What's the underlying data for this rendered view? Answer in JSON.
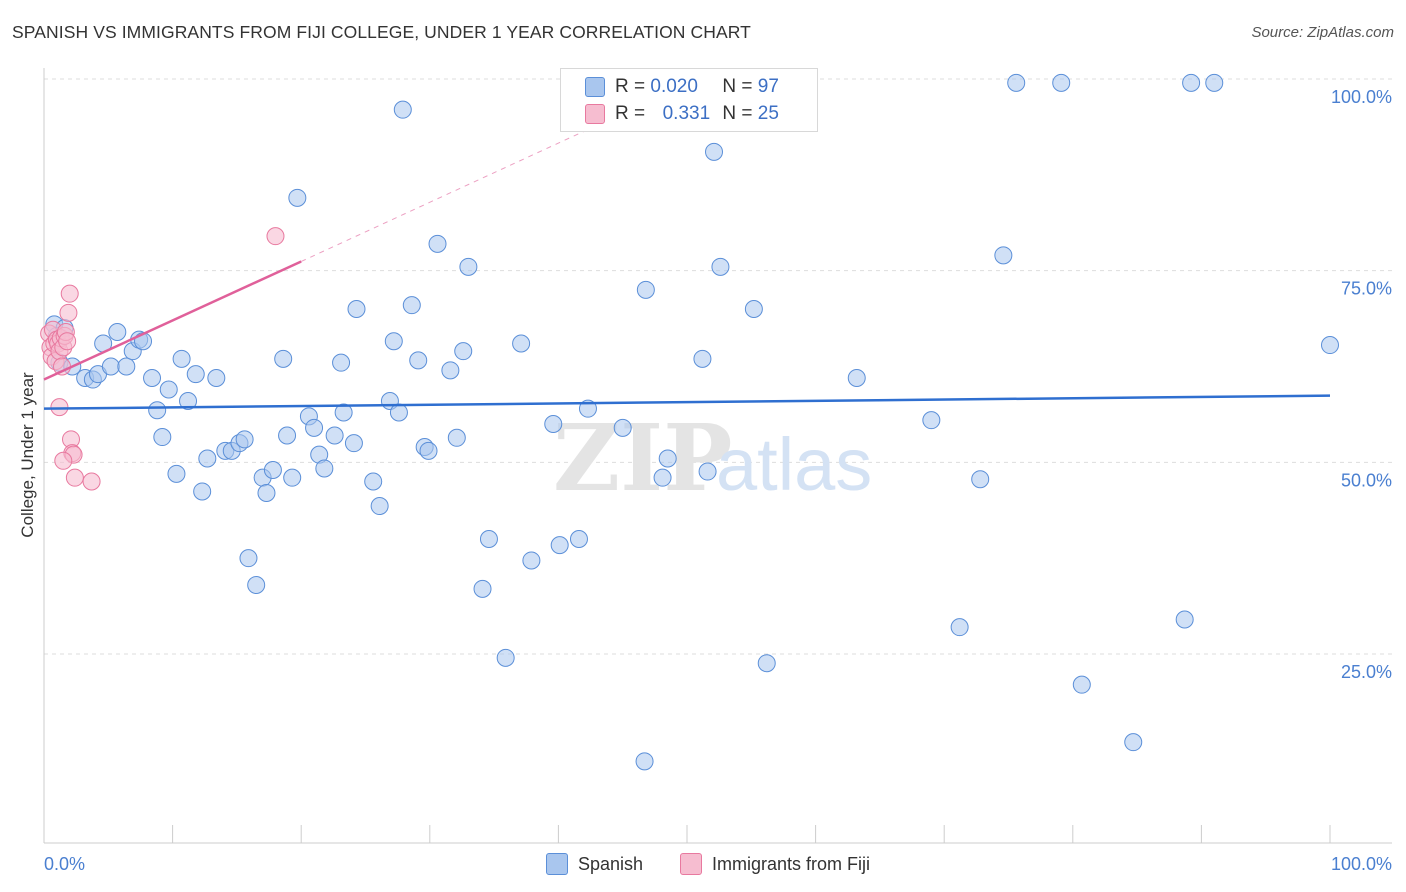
{
  "header": {
    "title": "SPANISH VS IMMIGRANTS FROM FIJI COLLEGE, UNDER 1 YEAR CORRELATION CHART",
    "source": "Source: ZipAtlas.com"
  },
  "legend": {
    "rows": [
      {
        "r_label": "R =",
        "r_value": "0.020",
        "n_label": "N =",
        "n_value": "97"
      },
      {
        "r_label": "R =",
        "r_value": "0.331",
        "n_label": "N =",
        "n_value": "25"
      }
    ]
  },
  "bottom_legend": {
    "spanish": "Spanish",
    "fiji": "Immigrants from Fiji"
  },
  "watermark": {
    "zip": "ZIP",
    "atlas": "atlas"
  },
  "colors": {
    "spanish_fill": "#a9c6ee",
    "spanish_stroke": "#5b8fd8",
    "spanish_line": "#2f6fd0",
    "fiji_fill": "#f6bdd0",
    "fiji_stroke": "#e8799f",
    "fiji_line": "#e0609a",
    "grid": "#dddddd",
    "tick_text": "#4a7fd0"
  },
  "chart_data": {
    "type": "scatter",
    "title": "SPANISH VS IMMIGRANTS FROM FIJI COLLEGE, UNDER 1 YEAR CORRELATION CHART",
    "xlabel": "",
    "ylabel": "College, Under 1 year",
    "xlim": [
      0,
      100
    ],
    "ylim": [
      0,
      105
    ],
    "x_tick_labels": [
      "0.0%",
      "100.0%"
    ],
    "y_ticks": [
      25,
      50,
      75,
      100
    ],
    "y_tick_labels": [
      "25.0%",
      "50.0%",
      "75.0%",
      "100.0%"
    ],
    "series": [
      {
        "name": "Spanish",
        "r": 0.02,
        "n": 97,
        "trend": {
          "x": [
            0,
            100
          ],
          "y": [
            57.0,
            58.7
          ]
        },
        "points": [
          [
            0.8,
            68.0
          ],
          [
            1.0,
            66.5
          ],
          [
            1.2,
            63.0
          ],
          [
            1.6,
            67.5
          ],
          [
            2.2,
            62.5
          ],
          [
            3.2,
            61.0
          ],
          [
            3.8,
            60.8
          ],
          [
            4.2,
            61.5
          ],
          [
            4.6,
            65.5
          ],
          [
            5.2,
            62.5
          ],
          [
            5.7,
            67.0
          ],
          [
            6.4,
            62.5
          ],
          [
            6.9,
            64.5
          ],
          [
            7.4,
            66.0
          ],
          [
            7.7,
            65.8
          ],
          [
            8.4,
            61.0
          ],
          [
            8.8,
            56.8
          ],
          [
            9.2,
            53.3
          ],
          [
            9.7,
            59.5
          ],
          [
            10.3,
            48.5
          ],
          [
            10.7,
            63.5
          ],
          [
            11.2,
            58.0
          ],
          [
            11.8,
            61.5
          ],
          [
            12.3,
            46.2
          ],
          [
            12.7,
            50.5
          ],
          [
            13.4,
            61.0
          ],
          [
            14.1,
            51.5
          ],
          [
            14.6,
            51.5
          ],
          [
            15.2,
            52.5
          ],
          [
            15.6,
            53.0
          ],
          [
            15.9,
            37.5
          ],
          [
            16.5,
            34.0
          ],
          [
            17.0,
            48.0
          ],
          [
            17.3,
            46.0
          ],
          [
            17.8,
            49.0
          ],
          [
            18.6,
            63.5
          ],
          [
            18.9,
            53.5
          ],
          [
            19.3,
            48.0
          ],
          [
            19.7,
            84.5
          ],
          [
            20.6,
            56.0
          ],
          [
            21.0,
            54.5
          ],
          [
            21.4,
            51.0
          ],
          [
            21.8,
            49.2
          ],
          [
            22.6,
            53.5
          ],
          [
            23.1,
            63.0
          ],
          [
            23.3,
            56.5
          ],
          [
            24.1,
            52.5
          ],
          [
            24.3,
            70.0
          ],
          [
            25.6,
            47.5
          ],
          [
            26.1,
            44.3
          ],
          [
            26.9,
            58.0
          ],
          [
            27.2,
            65.8
          ],
          [
            27.6,
            56.5
          ],
          [
            27.9,
            96.0
          ],
          [
            28.6,
            70.5
          ],
          [
            29.1,
            63.3
          ],
          [
            29.6,
            52.0
          ],
          [
            29.9,
            51.5
          ],
          [
            30.6,
            78.5
          ],
          [
            31.6,
            62.0
          ],
          [
            32.1,
            53.2
          ],
          [
            32.6,
            64.5
          ],
          [
            33.0,
            75.5
          ],
          [
            34.1,
            33.5
          ],
          [
            34.6,
            40.0
          ],
          [
            35.9,
            24.5
          ],
          [
            37.1,
            65.5
          ],
          [
            37.9,
            37.2
          ],
          [
            39.6,
            55.0
          ],
          [
            40.1,
            39.2
          ],
          [
            41.6,
            40.0
          ],
          [
            42.3,
            57.0
          ],
          [
            45.0,
            54.5
          ],
          [
            46.7,
            11.0
          ],
          [
            46.8,
            72.5
          ],
          [
            48.1,
            48.0
          ],
          [
            48.5,
            50.5
          ],
          [
            51.2,
            63.5
          ],
          [
            51.6,
            48.8
          ],
          [
            52.1,
            90.5
          ],
          [
            52.6,
            75.5
          ],
          [
            55.2,
            70.0
          ],
          [
            56.2,
            23.8
          ],
          [
            63.2,
            61.0
          ],
          [
            69.0,
            55.5
          ],
          [
            71.2,
            28.5
          ],
          [
            72.8,
            47.8
          ],
          [
            74.6,
            77.0
          ],
          [
            75.6,
            99.5
          ],
          [
            79.1,
            99.5
          ],
          [
            80.7,
            21.0
          ],
          [
            84.7,
            13.5
          ],
          [
            88.7,
            29.5
          ],
          [
            89.2,
            99.5
          ],
          [
            91.0,
            99.5
          ],
          [
            100.0,
            65.3
          ]
        ]
      },
      {
        "name": "Immigrants from Fiji",
        "r": 0.331,
        "n": 25,
        "trend": {
          "x": [
            0,
            20
          ],
          "y": [
            60.8,
            76.2
          ],
          "dashed_to": [
            45,
            95.5
          ]
        },
        "points": [
          [
            0.4,
            66.8
          ],
          [
            0.5,
            65.0
          ],
          [
            0.6,
            63.8
          ],
          [
            0.7,
            67.3
          ],
          [
            0.8,
            65.5
          ],
          [
            0.9,
            63.2
          ],
          [
            1.0,
            66.0
          ],
          [
            1.1,
            65.5
          ],
          [
            1.2,
            64.5
          ],
          [
            1.3,
            66.2
          ],
          [
            1.4,
            62.5
          ],
          [
            1.5,
            65.0
          ],
          [
            1.6,
            66.5
          ],
          [
            1.7,
            67.0
          ],
          [
            1.8,
            65.8
          ],
          [
            1.9,
            69.5
          ],
          [
            2.0,
            72.0
          ],
          [
            2.1,
            53.0
          ],
          [
            2.2,
            51.2
          ],
          [
            2.3,
            51.0
          ],
          [
            2.4,
            48.0
          ],
          [
            1.2,
            57.2
          ],
          [
            1.5,
            50.2
          ],
          [
            3.7,
            47.5
          ],
          [
            18.0,
            79.5
          ]
        ]
      }
    ]
  }
}
